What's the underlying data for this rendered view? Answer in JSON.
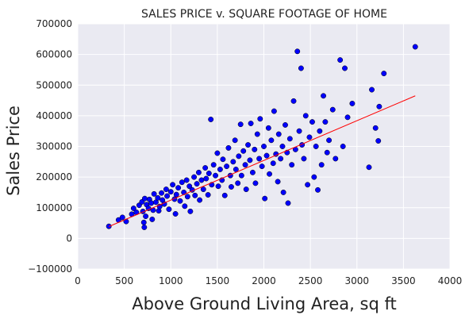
{
  "chart_data": {
    "type": "scatter",
    "title": "SALES PRICE v. SQUARE FOOTAGE OF HOME",
    "xlabel": "Above Ground Living Area, sq ft",
    "ylabel": "Sales Price",
    "xlim": [
      0,
      4000
    ],
    "ylim": [
      -100000,
      700000
    ],
    "x_ticks": [
      0,
      500,
      1000,
      1500,
      2000,
      2500,
      3000,
      3500,
      4000
    ],
    "y_ticks": [
      -100000,
      0,
      100000,
      200000,
      300000,
      400000,
      500000,
      600000,
      700000
    ],
    "x_tick_labels": [
      "0",
      "500",
      "1000",
      "1500",
      "2000",
      "2500",
      "3000",
      "3500",
      "4000"
    ],
    "y_tick_labels": [
      "−100000",
      "0",
      "100000",
      "200000",
      "300000",
      "400000",
      "500000",
      "600000",
      "700000"
    ],
    "grid": true,
    "background_color": "#eaeaf2",
    "point_color": "#0000ff",
    "point_edge_color": "#000000",
    "line_color": "#ff0000",
    "series": [
      {
        "type": "scatter",
        "points": [
          [
            334,
            39300
          ],
          [
            438,
            60000
          ],
          [
            480,
            68500
          ],
          [
            520,
            55000
          ],
          [
            580,
            79000
          ],
          [
            600,
            98000
          ],
          [
            630,
            85000
          ],
          [
            660,
            108000
          ],
          [
            690,
            119000
          ],
          [
            700,
            88000
          ],
          [
            710,
            52000
          ],
          [
            715,
            36000
          ],
          [
            720,
            130000
          ],
          [
            730,
            72000
          ],
          [
            740,
            110000
          ],
          [
            760,
            98000
          ],
          [
            770,
            127000
          ],
          [
            790,
            115000
          ],
          [
            800,
            62000
          ],
          [
            810,
            92000
          ],
          [
            820,
            145000
          ],
          [
            840,
            118000
          ],
          [
            860,
            132000
          ],
          [
            870,
            90000
          ],
          [
            880,
            104000
          ],
          [
            900,
            148000
          ],
          [
            910,
            125000
          ],
          [
            930,
            112000
          ],
          [
            950,
            160000
          ],
          [
            960,
            138000
          ],
          [
            980,
            95000
          ],
          [
            1000,
            152000
          ],
          [
            1020,
            175000
          ],
          [
            1040,
            128000
          ],
          [
            1050,
            80000
          ],
          [
            1060,
            143000
          ],
          [
            1080,
            165000
          ],
          [
            1100,
            122000
          ],
          [
            1120,
            183000
          ],
          [
            1140,
            150000
          ],
          [
            1150,
            105000
          ],
          [
            1170,
            190000
          ],
          [
            1180,
            136000
          ],
          [
            1200,
            170000
          ],
          [
            1210,
            88000
          ],
          [
            1230,
            158000
          ],
          [
            1250,
            200000
          ],
          [
            1260,
            140000
          ],
          [
            1280,
            178000
          ],
          [
            1300,
            215000
          ],
          [
            1310,
            125000
          ],
          [
            1330,
            190000
          ],
          [
            1350,
            160000
          ],
          [
            1370,
            230000
          ],
          [
            1380,
            195000
          ],
          [
            1400,
            142000
          ],
          [
            1410,
            212000
          ],
          [
            1430,
            388000
          ],
          [
            1440,
            175000
          ],
          [
            1460,
            240000
          ],
          [
            1480,
            205000
          ],
          [
            1500,
            278000
          ],
          [
            1510,
            170000
          ],
          [
            1530,
            225000
          ],
          [
            1550,
            190000
          ],
          [
            1560,
            258000
          ],
          [
            1580,
            140000
          ],
          [
            1600,
            235000
          ],
          [
            1620,
            295000
          ],
          [
            1640,
            205000
          ],
          [
            1650,
            168000
          ],
          [
            1670,
            250000
          ],
          [
            1690,
            320000
          ],
          [
            1700,
            225000
          ],
          [
            1720,
            180000
          ],
          [
            1730,
            268000
          ],
          [
            1750,
            372000
          ],
          [
            1760,
            205000
          ],
          [
            1780,
            285000
          ],
          [
            1800,
            240000
          ],
          [
            1810,
            160000
          ],
          [
            1830,
            305000
          ],
          [
            1850,
            255000
          ],
          [
            1860,
            375000
          ],
          [
            1880,
            215000
          ],
          [
            1900,
            290000
          ],
          [
            1910,
            180000
          ],
          [
            1930,
            340000
          ],
          [
            1950,
            260000
          ],
          [
            1960,
            390000
          ],
          [
            1980,
            235000
          ],
          [
            2000,
            300000
          ],
          [
            2010,
            130000
          ],
          [
            2030,
            270000
          ],
          [
            2050,
            360000
          ],
          [
            2060,
            210000
          ],
          [
            2080,
            320000
          ],
          [
            2100,
            245000
          ],
          [
            2110,
            415000
          ],
          [
            2130,
            275000
          ],
          [
            2150,
            185000
          ],
          [
            2160,
            340000
          ],
          [
            2180,
            260000
          ],
          [
            2200,
            300000
          ],
          [
            2210,
            150000
          ],
          [
            2230,
            370000
          ],
          [
            2250,
            280000
          ],
          [
            2260,
            115000
          ],
          [
            2280,
            325000
          ],
          [
            2300,
            240000
          ],
          [
            2320,
            448000
          ],
          [
            2340,
            290000
          ],
          [
            2360,
            610000
          ],
          [
            2380,
            350000
          ],
          [
            2400,
            555000
          ],
          [
            2410,
            305000
          ],
          [
            2430,
            260000
          ],
          [
            2450,
            400000
          ],
          [
            2470,
            175000
          ],
          [
            2490,
            330000
          ],
          [
            2520,
            380000
          ],
          [
            2540,
            200000
          ],
          [
            2560,
            300000
          ],
          [
            2580,
            158000
          ],
          [
            2600,
            350000
          ],
          [
            2620,
            240000
          ],
          [
            2640,
            465000
          ],
          [
            2660,
            380000
          ],
          [
            2680,
            280000
          ],
          [
            2700,
            320000
          ],
          [
            2740,
            420000
          ],
          [
            2770,
            260000
          ],
          [
            2820,
            582000
          ],
          [
            2850,
            300000
          ],
          [
            2870,
            555000
          ],
          [
            2900,
            395000
          ],
          [
            2950,
            440000
          ],
          [
            3130,
            232000
          ],
          [
            3160,
            485000
          ],
          [
            3200,
            360000
          ],
          [
            3230,
            318000
          ],
          [
            3240,
            430000
          ],
          [
            3290,
            538000
          ],
          [
            3627,
            625000
          ]
        ]
      },
      {
        "type": "line",
        "points": [
          [
            334,
            38500
          ],
          [
            3627,
            465000
          ]
        ]
      }
    ]
  }
}
